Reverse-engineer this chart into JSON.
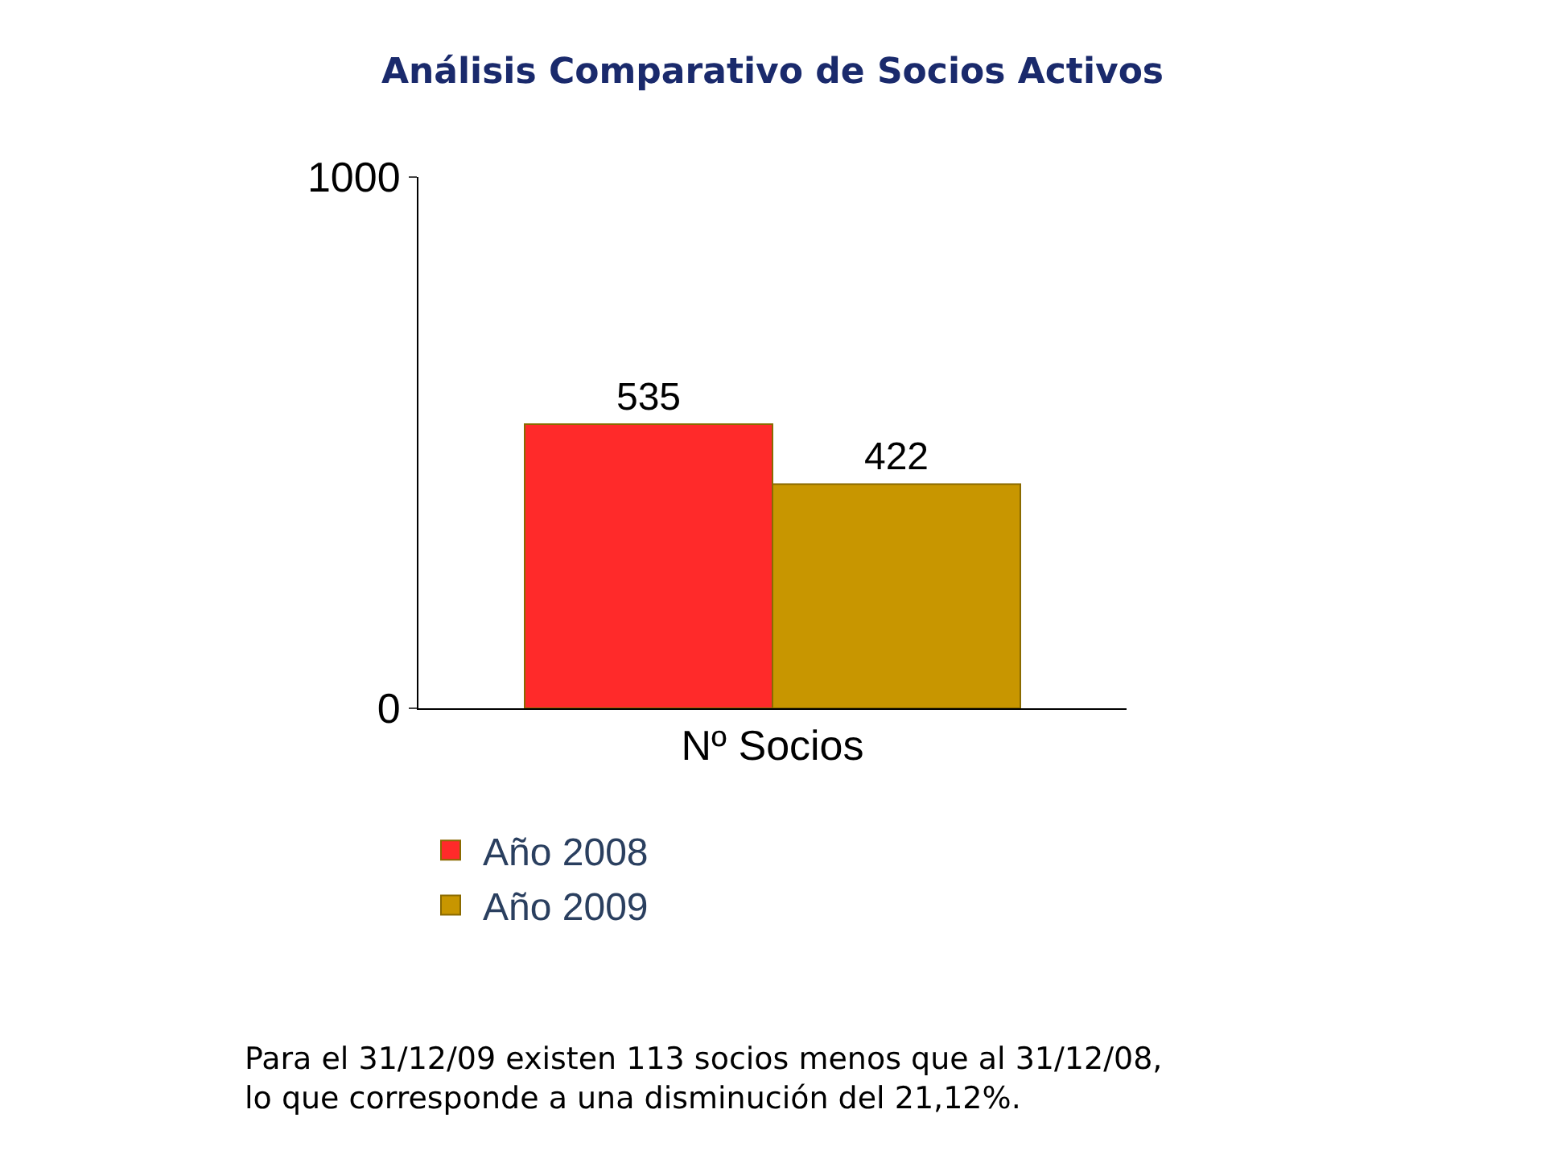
{
  "chart_data": {
    "type": "bar",
    "title": "Análisis Comparativo de Socios Activos",
    "categories": [
      "Nº Socios"
    ],
    "series": [
      {
        "name": "Año 2008",
        "color": "#ff2a2a",
        "values": [
          535
        ]
      },
      {
        "name": "Año 2009",
        "color": "#c89600",
        "values": [
          422
        ]
      }
    ],
    "ylim": [
      0,
      1000
    ],
    "yticks": [
      0,
      1000
    ],
    "legend": "bottom left",
    "data_labels": true,
    "annotations": [
      "Para el 31/12/09 existen 113 socios menos que al 31/12/08,\nlo que corresponde a una disminución del 21,12%."
    ]
  }
}
